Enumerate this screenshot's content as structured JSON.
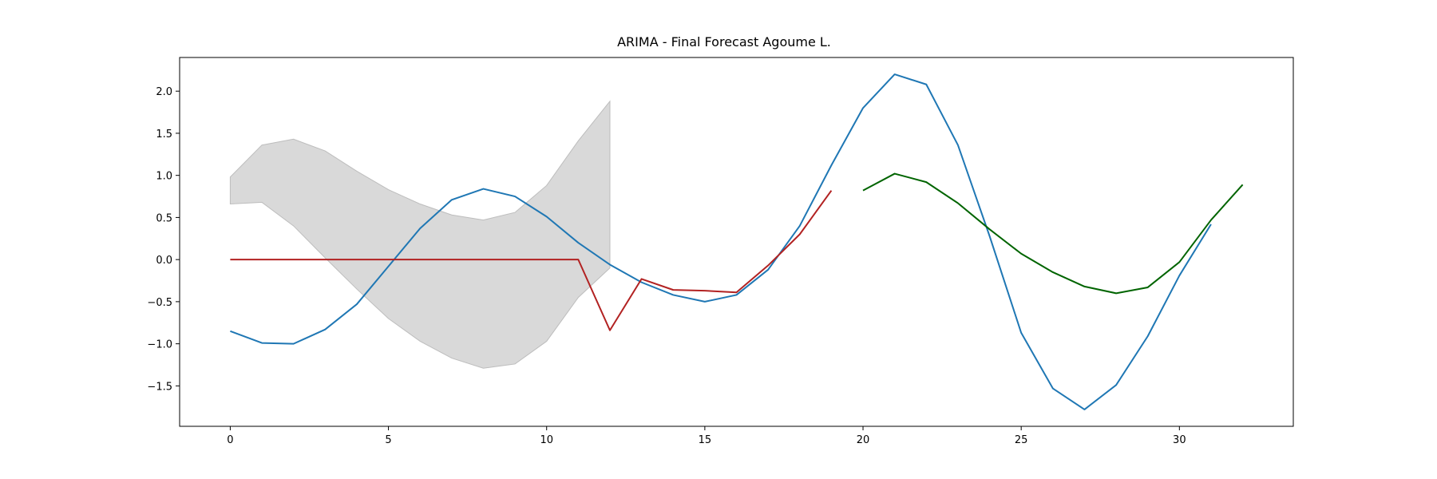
{
  "chart_data": {
    "type": "line",
    "title": "ARIMA - Final Forecast Agoume L.",
    "xlabel": "",
    "ylabel": "",
    "xlim": [
      -1.6,
      33.6
    ],
    "ylim": [
      -1.98,
      2.4
    ],
    "xticks": [
      0,
      5,
      10,
      15,
      20,
      25,
      30
    ],
    "xtick_labels": [
      "0",
      "5",
      "10",
      "15",
      "20",
      "25",
      "30"
    ],
    "yticks": [
      -1.5,
      -1.0,
      -0.5,
      0.0,
      0.5,
      1.0,
      1.5,
      2.0
    ],
    "ytick_labels": [
      "−1.5",
      "−1.0",
      "−0.5",
      "0.0",
      "0.5",
      "1.0",
      "1.5",
      "2.0"
    ],
    "grid": false,
    "legend": false,
    "series": [
      {
        "color": "#1f77b4",
        "x": [
          0,
          1,
          2,
          3,
          4,
          5,
          6,
          7,
          8,
          9,
          10,
          11,
          12,
          13,
          14,
          15,
          16,
          17,
          18,
          19,
          20,
          21,
          22,
          23,
          24,
          25,
          26,
          27,
          28,
          29,
          30,
          31
        ],
        "values": [
          -0.85,
          -0.99,
          -1.0,
          -0.83,
          -0.53,
          -0.08,
          0.37,
          0.71,
          0.84,
          0.75,
          0.51,
          0.2,
          -0.06,
          -0.27,
          -0.42,
          -0.5,
          -0.42,
          -0.12,
          0.4,
          1.12,
          1.8,
          2.2,
          2.08,
          1.36,
          0.28,
          -0.87,
          -1.53,
          -1.78,
          -1.49,
          -0.91,
          -0.19,
          0.42
        ]
      },
      {
        "color": "#b22222",
        "x": [
          0,
          1,
          2,
          3,
          4,
          5,
          6,
          7,
          8,
          9,
          10,
          11,
          12,
          13,
          14,
          15,
          16,
          17,
          18,
          19
        ],
        "values": [
          0,
          0,
          0,
          0,
          0,
          0,
          0,
          0,
          0,
          0,
          0,
          0,
          -0.84,
          -0.23,
          -0.36,
          -0.37,
          -0.39,
          -0.07,
          0.3,
          0.82
        ]
      },
      {
        "color": "#006400",
        "x": [
          20,
          21,
          22,
          23,
          24,
          25,
          26,
          27,
          28,
          29,
          30,
          31,
          32
        ],
        "values": [
          0.82,
          1.02,
          0.92,
          0.67,
          0.36,
          0.07,
          -0.15,
          -0.32,
          -0.4,
          -0.33,
          -0.03,
          0.47,
          0.89
        ]
      }
    ],
    "confidence_band": {
      "color": "#d9d9d9",
      "x": [
        0,
        1,
        2,
        3,
        4,
        5,
        6,
        7,
        8,
        9,
        10,
        11,
        12
      ],
      "upper": [
        0.98,
        1.36,
        1.43,
        1.29,
        1.05,
        0.83,
        0.66,
        0.53,
        0.47,
        0.56,
        0.88,
        1.41,
        1.88
      ],
      "lower": [
        0.66,
        0.68,
        0.4,
        0.02,
        -0.35,
        -0.7,
        -0.97,
        -1.17,
        -1.29,
        -1.24,
        -0.97,
        -0.45,
        -0.1
      ]
    }
  }
}
